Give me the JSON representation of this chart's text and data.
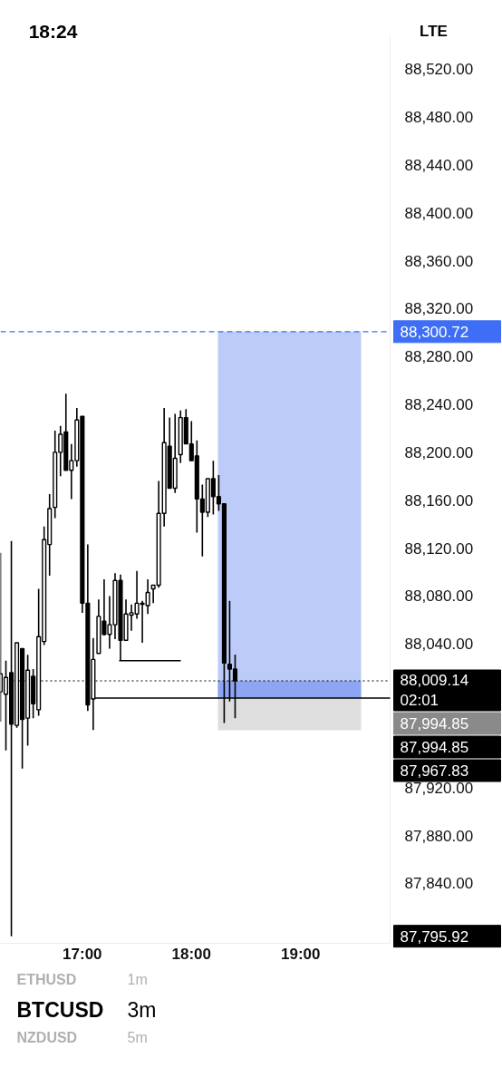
{
  "chart_data": {
    "type": "candlestick",
    "title": "BTCUSD",
    "subtitle": "3m",
    "annotations": [
      "18:24",
      "LTE",
      "ETHUSD",
      "1m",
      "NZDUSD",
      "5m",
      "87,795.92"
    ],
    "x": [
      16.25,
      16.3,
      16.35,
      16.4,
      16.45,
      16.5,
      16.55,
      16.6,
      16.65,
      16.7,
      16.75,
      16.8,
      16.85,
      16.9,
      16.95,
      17.0,
      17.05,
      17.1,
      17.15,
      17.2,
      17.25,
      17.3,
      17.35,
      17.4,
      17.45,
      17.5,
      17.55,
      17.6,
      17.65,
      17.7,
      17.75,
      17.8,
      17.85,
      17.9,
      17.95,
      18.0,
      18.05,
      18.1,
      18.15,
      18.2,
      18.25,
      18.3,
      18.35,
      18.4
    ],
    "ohlc": [
      [
        88000,
        88116,
        87975,
        88015
      ],
      [
        87998,
        88026,
        87951,
        88012
      ],
      [
        88016,
        88126,
        87795.92,
        87973
      ],
      [
        87972,
        88041,
        87970,
        88041
      ],
      [
        88036,
        88036,
        87936,
        87977
      ],
      [
        87978,
        88031,
        87955,
        88018
      ],
      [
        88013,
        88019,
        87978,
        87990
      ],
      [
        87985,
        88086,
        87980,
        88046
      ],
      [
        88042,
        88138,
        88039,
        88127
      ],
      [
        88123,
        88165,
        88097,
        88153
      ],
      [
        88154,
        88218,
        88145,
        88200
      ],
      [
        88200,
        88222,
        88180,
        88215
      ],
      [
        88217,
        88249,
        88185,
        88185
      ],
      [
        88185,
        88207,
        88161,
        88193
      ],
      [
        88193,
        88237,
        88188,
        88227
      ],
      [
        88230,
        88230,
        88066,
        88074
      ],
      [
        88074,
        88123,
        87984,
        87989
      ],
      [
        87994,
        88045,
        87968,
        88027
      ],
      [
        88032,
        88077,
        88032,
        88063
      ],
      [
        88059,
        88094,
        88047,
        88048
      ],
      [
        88048,
        88080,
        88036,
        88056
      ],
      [
        88056,
        88099,
        88044,
        88093
      ],
      [
        88093,
        88098,
        88026,
        88043
      ],
      [
        88043,
        88077,
        88043,
        88065
      ],
      [
        88064,
        88073,
        88051,
        88066
      ],
      [
        88065,
        88101,
        88061,
        88074
      ],
      [
        88073,
        88076,
        88041,
        88074
      ],
      [
        88072,
        88094,
        88065,
        88083
      ],
      [
        88086,
        88089,
        88074,
        88089
      ],
      [
        88089,
        88176,
        88087,
        88149
      ],
      [
        88149,
        88237,
        88138,
        88208
      ],
      [
        88205,
        88229,
        88170,
        88170
      ],
      [
        88170,
        88232,
        88166,
        88195
      ],
      [
        88198,
        88235,
        88191,
        88229
      ],
      [
        88229,
        88236,
        88207,
        88207
      ],
      [
        88207,
        88226,
        88193,
        88193
      ],
      [
        88197,
        88210,
        88133,
        88161
      ],
      [
        88161,
        88173,
        88113,
        88150
      ],
      [
        88150,
        88178,
        88146,
        88178
      ],
      [
        88178,
        88193,
        88148,
        88163
      ],
      [
        88163,
        88181,
        88151,
        88157
      ],
      [
        88157,
        88157,
        87974,
        88024
      ],
      [
        88023,
        88076,
        87992,
        88019
      ],
      [
        88019,
        88031,
        87978,
        88009.14
      ]
    ],
    "colors": [
      "#ffffff",
      "#ffffff",
      "#000000",
      "#ffffff",
      "#000000",
      "#ffffff",
      "#000000",
      "#ffffff",
      "#ffffff",
      "#ffffff",
      "#ffffff",
      "#ffffff",
      "#000000",
      "#ffffff",
      "#ffffff",
      "#000000",
      "#000000",
      "#ffffff",
      "#ffffff",
      "#000000",
      "#ffffff",
      "#ffffff",
      "#000000",
      "#ffffff",
      "#ffffff",
      "#ffffff",
      "#ffffff",
      "#ffffff",
      "#ffffff",
      "#ffffff",
      "#ffffff",
      "#000000",
      "#ffffff",
      "#ffffff",
      "#000000",
      "#000000",
      "#000000",
      "#000000",
      "#ffffff",
      "#000000",
      "#000000",
      "#000000",
      "#000000",
      "#000000"
    ],
    "xlim": [
      16.25,
      19.82
    ],
    "xticks": [
      {
        "value": 17,
        "label": "17:00"
      },
      {
        "value": 18,
        "label": "18:00"
      },
      {
        "value": 19,
        "label": "19:00"
      }
    ],
    "ylim": [
      87790,
      88547
    ],
    "yticks": [
      {
        "value": 87840,
        "label": "87,840.00"
      },
      {
        "value": 87880,
        "label": "87,880.00"
      },
      {
        "value": 87920,
        "label": "87,920.00"
      },
      {
        "value": 88040,
        "label": "88,040.00"
      },
      {
        "value": 88080,
        "label": "88,080.00"
      },
      {
        "value": 88120,
        "label": "88,120.00"
      },
      {
        "value": 88160,
        "label": "88,160.00"
      },
      {
        "value": 88200,
        "label": "88,200.00"
      },
      {
        "value": 88240,
        "label": "88,240.00"
      },
      {
        "value": 88280,
        "label": "88,280.00"
      },
      {
        "value": 88320,
        "label": "88,320.00"
      },
      {
        "value": 88360,
        "label": "88,360.00"
      },
      {
        "value": 88400,
        "label": "88,400.00"
      },
      {
        "value": 88440,
        "label": "88,440.00"
      },
      {
        "value": 88480,
        "label": "88,480.00"
      },
      {
        "value": 88520,
        "label": "88,520.00"
      }
    ],
    "bands": [
      {
        "axis": "y",
        "from": 87994.85,
        "to": 88300.72,
        "color": "#bccbf7",
        "label": "87,994.85"
      },
      {
        "axis": "y",
        "from": 87994.85,
        "to": 88009.14,
        "color": "#8ea6f2"
      },
      {
        "axis": "y",
        "from": 87967.83,
        "to": 87994.85,
        "color": "#dedede",
        "label": "87,967.83"
      }
    ],
    "ref_lines": [
      {
        "axis": "y",
        "value": 88300.72,
        "label": "88,300.72",
        "color": "#3d6ef5",
        "line_style": "dashed"
      },
      {
        "axis": "y",
        "value": 88009.14,
        "label": "88,009.14\n02:01",
        "color": "#000000",
        "line_style": "dotted"
      },
      {
        "axis": "y",
        "value": 87994.85,
        "label": "87,994.85",
        "color": "#000000",
        "line_style": "solid"
      },
      {
        "axis": "y",
        "value": 88026,
        "label": null,
        "color": "#000000",
        "line_style": "solid"
      }
    ],
    "grid": false
  }
}
